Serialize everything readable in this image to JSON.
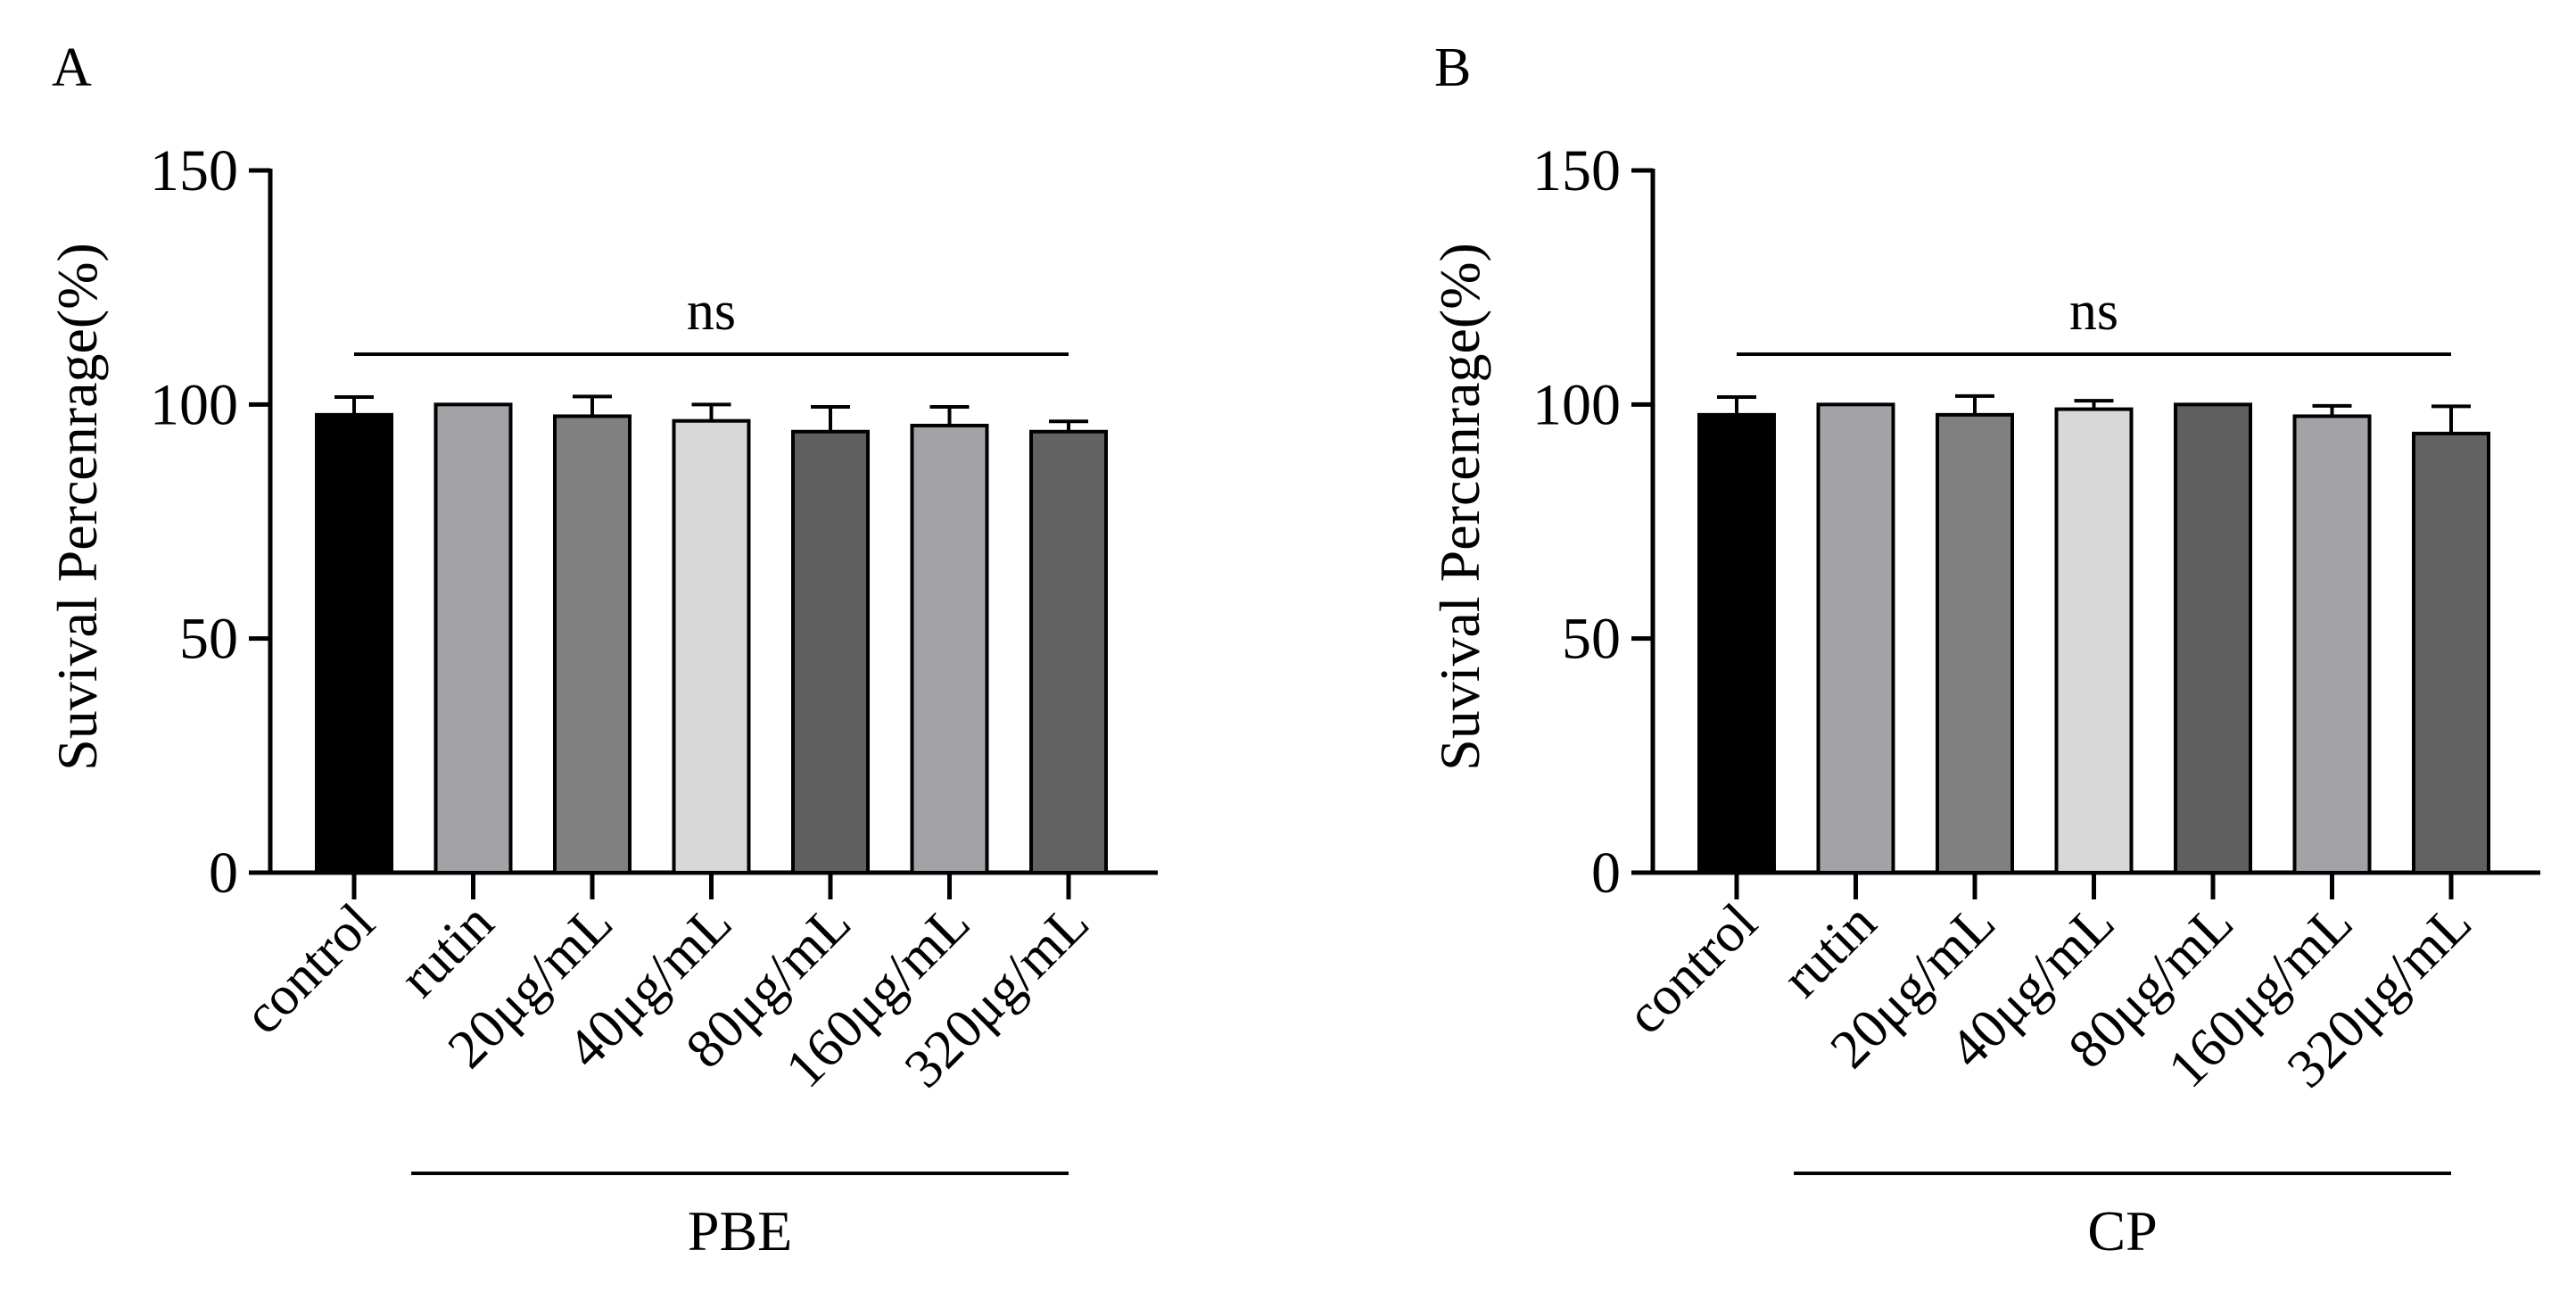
{
  "colors": {
    "control": "#000000",
    "rutin": "#a3a2a7",
    "20": "#808080",
    "40": "#d8d8d8",
    "80": "#5f5f5f",
    "160": "#a3a2a7",
    "320": "#626262",
    "axis": "#000000"
  },
  "chart_data": [
    {
      "panel_label": "A",
      "type": "bar",
      "ylabel": "Suvival Percenrage(%)",
      "ylim": [
        0,
        150
      ],
      "yticks": [
        "0",
        "50",
        "100",
        "150"
      ],
      "categories": [
        "control",
        "rutin",
        "20μg/mL",
        "40μg/mL",
        "80μg/mL",
        "160μg/mL",
        "320μg/mL"
      ],
      "values": [
        97.8,
        100,
        97.5,
        96.5,
        94.2,
        95.5,
        94.2
      ],
      "errors": [
        3.8,
        0,
        4.2,
        3.5,
        5.3,
        4.0,
        2.2
      ],
      "significance": "ns",
      "group_label": "PBE"
    },
    {
      "panel_label": "B",
      "type": "bar",
      "ylabel": "Suvival Percenrage(%)",
      "ylim": [
        0,
        150
      ],
      "yticks": [
        "0",
        "50",
        "100",
        "150"
      ],
      "categories": [
        "control",
        "rutin",
        "20μg/mL",
        "40μg/mL",
        "80μg/mL",
        "160μg/mL",
        "320μg/mL"
      ],
      "values": [
        97.8,
        100,
        97.8,
        99.0,
        100,
        97.5,
        93.8
      ],
      "errors": [
        3.8,
        0,
        4.0,
        1.8,
        0,
        2.2,
        5.8
      ],
      "significance": "ns",
      "group_label": "CP"
    }
  ]
}
